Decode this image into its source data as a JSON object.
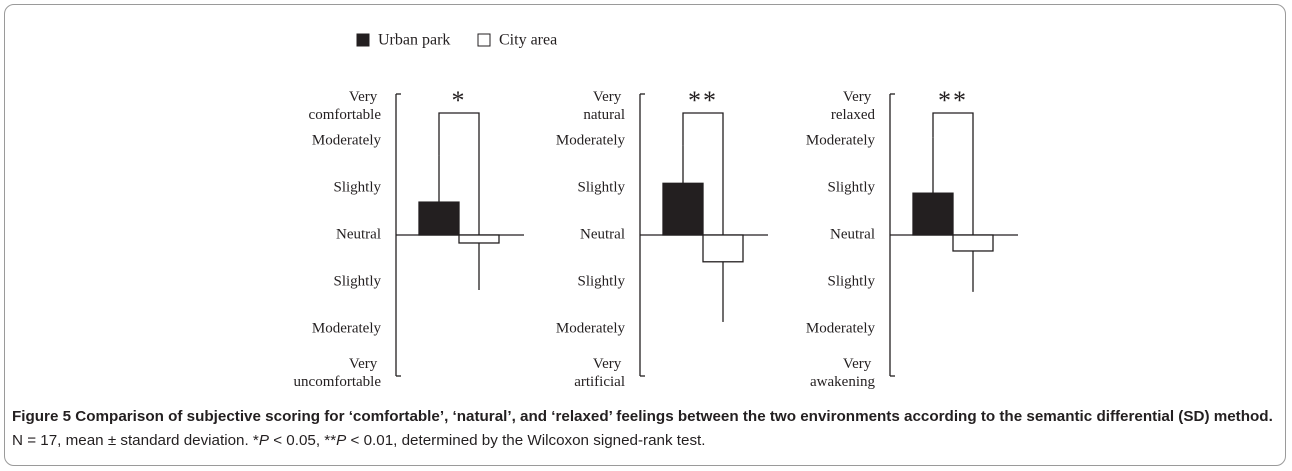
{
  "chart_data": [
    {
      "type": "bar",
      "annotation": "*",
      "ylim": [
        -3,
        3
      ],
      "yticks": [
        {
          "value": -3,
          "label": "Very uncomfortable"
        },
        {
          "value": -2,
          "label": "Moderately"
        },
        {
          "value": -1,
          "label": "Slightly"
        },
        {
          "value": 0,
          "label": "Neutral"
        },
        {
          "value": 1,
          "label": "Slightly"
        },
        {
          "value": 2,
          "label": "Moderately"
        },
        {
          "value": 3,
          "label": "Very comfortable"
        }
      ],
      "series": [
        {
          "name": "Urban park",
          "color": "#231f20",
          "values": [
            0.7
          ],
          "errors": [
            1.0
          ]
        },
        {
          "name": "City area",
          "color": "#ffffff",
          "values": [
            -0.17
          ],
          "errors": [
            1.0
          ]
        }
      ]
    },
    {
      "type": "bar",
      "annotation": "**",
      "ylim": [
        -3,
        3
      ],
      "yticks": [
        {
          "value": -3,
          "label": "Very artificial"
        },
        {
          "value": -2,
          "label": "Moderately"
        },
        {
          "value": -1,
          "label": "Slightly"
        },
        {
          "value": 0,
          "label": "Neutral"
        },
        {
          "value": 1,
          "label": "Slightly"
        },
        {
          "value": 2,
          "label": "Moderately"
        },
        {
          "value": 3,
          "label": "Very natural"
        }
      ],
      "series": [
        {
          "name": "Urban park",
          "color": "#231f20",
          "values": [
            1.1
          ],
          "errors": [
            0.8
          ]
        },
        {
          "name": "City area",
          "color": "#ffffff",
          "values": [
            -0.57
          ],
          "errors": [
            1.28
          ]
        }
      ]
    },
    {
      "type": "bar",
      "annotation": "**",
      "ylim": [
        -3,
        3
      ],
      "yticks": [
        {
          "value": -3,
          "label": "Very awakening"
        },
        {
          "value": -2,
          "label": "Moderately"
        },
        {
          "value": -1,
          "label": "Slightly"
        },
        {
          "value": 0,
          "label": "Neutral"
        },
        {
          "value": 1,
          "label": "Slightly"
        },
        {
          "value": 2,
          "label": "Moderately"
        },
        {
          "value": 3,
          "label": "Very relaxed"
        }
      ],
      "series": [
        {
          "name": "Urban park",
          "color": "#231f20",
          "values": [
            0.89
          ],
          "errors": [
            1.19
          ]
        },
        {
          "name": "City area",
          "color": "#ffffff",
          "values": [
            -0.34
          ],
          "errors": [
            0.87
          ]
        }
      ]
    }
  ],
  "caption": {
    "title": "Figure 5 Comparison of subjective scoring for ‘comfortable’, ‘natural’, and ‘relaxed’ feelings between the two environments according to the semantic differential (SD) method.",
    "runs": [
      "N = 17, mean ± standard deviation. *",
      "P",
      "< 0.05, **",
      "P",
      "< 0.01, determined by the Wilcoxon signed-rank test."
    ]
  }
}
